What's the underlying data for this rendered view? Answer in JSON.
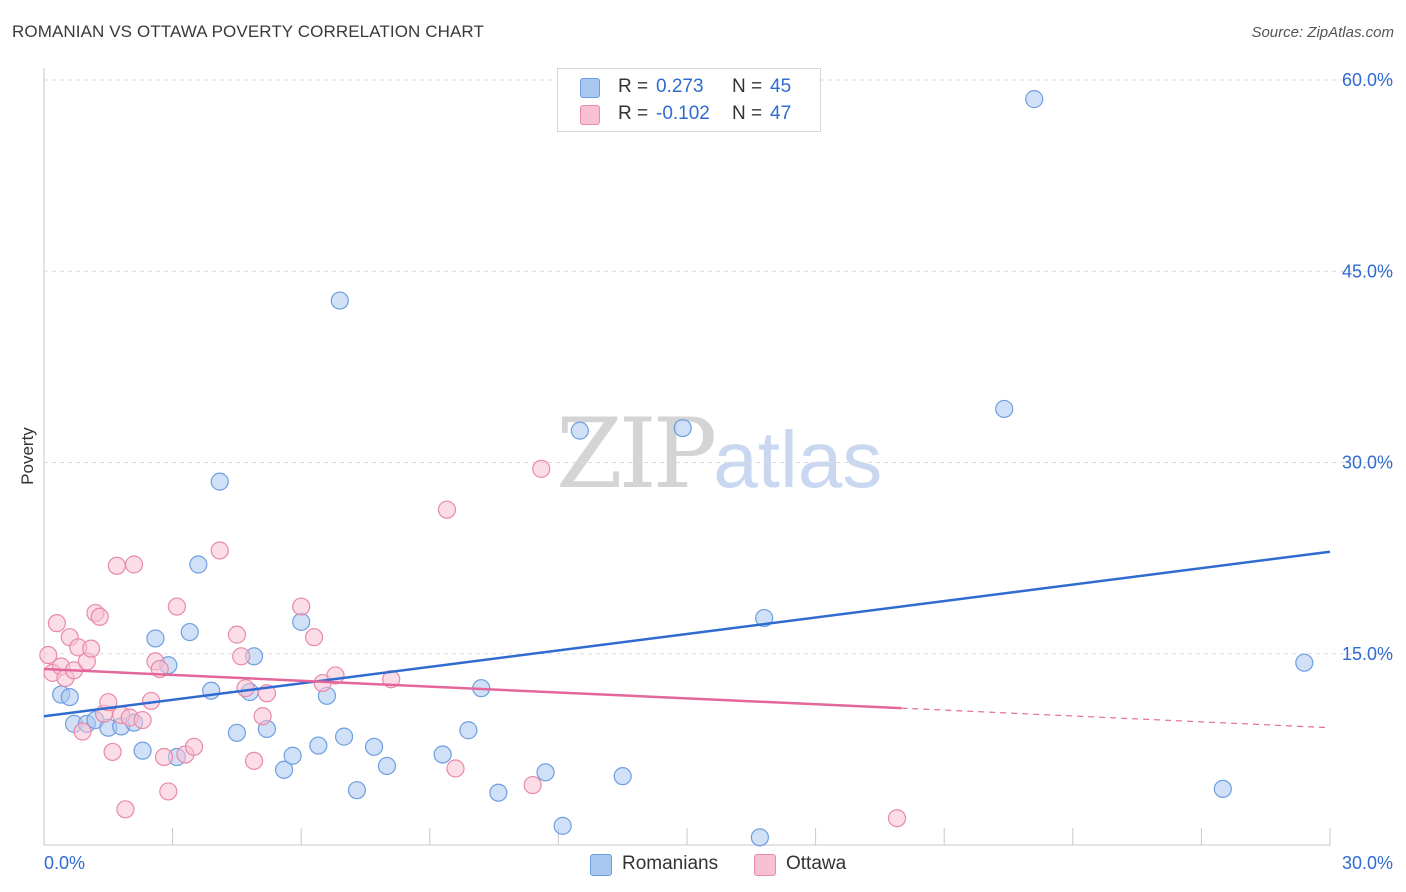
{
  "title": "ROMANIAN VS OTTAWA POVERTY CORRELATION CHART",
  "source": "Source: ZipAtlas.com",
  "watermark": {
    "zip": "ZIP",
    "atlas": "atlas"
  },
  "legend": {
    "rows": [
      {
        "r_label": "R =",
        "r_value": "0.273",
        "n_label": "N =",
        "n_value": "45",
        "color": "#a9c8f1",
        "border": "#6e9ee0"
      },
      {
        "r_label": "R =",
        "r_value": "-0.102",
        "n_label": "N =",
        "n_value": "47",
        "color": "#f7c1d3",
        "border": "#e88aa8"
      }
    ]
  },
  "bottom_legend": [
    {
      "label": "Romanians",
      "color": "#a9c8f1",
      "border": "#6e9ee0"
    },
    {
      "label": "Ottawa",
      "color": "#f7c1d3",
      "border": "#e88aa8"
    }
  ],
  "chart_data": {
    "type": "scatter",
    "title": "ROMANIAN VS OTTAWA POVERTY CORRELATION CHART",
    "xlabel": "",
    "ylabel": "Poverty",
    "xlim": [
      0,
      30
    ],
    "ylim": [
      0,
      60
    ],
    "x_tick_labels": [
      "0.0%",
      "30.0%"
    ],
    "y_ticks": [
      15,
      30,
      45,
      60
    ],
    "y_tick_labels": [
      "15.0%",
      "30.0%",
      "45.0%",
      "60.0%"
    ],
    "grid": true,
    "series": [
      {
        "name": "Romanians",
        "color": "#a9c8f1",
        "stroke": "#6e9ee0",
        "trend_color": "#2f6bd1",
        "trend": {
          "x0": 0,
          "y0": 10.1,
          "x1": 30,
          "y1": 23.0,
          "solid_until": 30
        },
        "points": [
          [
            0.4,
            11.8
          ],
          [
            0.6,
            11.6
          ],
          [
            0.7,
            9.5
          ],
          [
            1.0,
            9.5
          ],
          [
            1.2,
            9.8
          ],
          [
            1.5,
            9.2
          ],
          [
            1.8,
            9.3
          ],
          [
            2.1,
            9.6
          ],
          [
            2.3,
            7.4
          ],
          [
            2.6,
            16.2
          ],
          [
            2.9,
            14.1
          ],
          [
            3.1,
            6.9
          ],
          [
            3.4,
            16.7
          ],
          [
            3.6,
            22.0
          ],
          [
            3.9,
            12.1
          ],
          [
            4.1,
            28.5
          ],
          [
            4.5,
            8.8
          ],
          [
            4.8,
            12.0
          ],
          [
            4.9,
            14.8
          ],
          [
            5.2,
            9.1
          ],
          [
            5.6,
            5.9
          ],
          [
            5.8,
            7.0
          ],
          [
            6.0,
            17.5
          ],
          [
            6.4,
            7.8
          ],
          [
            6.6,
            11.7
          ],
          [
            6.9,
            42.7
          ],
          [
            7.0,
            8.5
          ],
          [
            7.3,
            4.3
          ],
          [
            7.7,
            7.7
          ],
          [
            8.0,
            6.2
          ],
          [
            9.3,
            7.1
          ],
          [
            9.9,
            9.0
          ],
          [
            10.2,
            12.3
          ],
          [
            10.6,
            4.1
          ],
          [
            11.7,
            5.7
          ],
          [
            12.1,
            1.5
          ],
          [
            12.5,
            32.5
          ],
          [
            13.5,
            5.4
          ],
          [
            14.9,
            32.7
          ],
          [
            16.7,
            0.6
          ],
          [
            16.8,
            17.8
          ],
          [
            22.4,
            34.2
          ],
          [
            23.1,
            58.5
          ],
          [
            27.5,
            4.4
          ],
          [
            29.4,
            14.3
          ]
        ]
      },
      {
        "name": "Ottawa",
        "color": "#f7c1d3",
        "stroke": "#e88aa8",
        "trend_color": "#e3679a",
        "trend": {
          "x0": 0,
          "y0": 13.8,
          "x1": 30,
          "y1": 9.2,
          "solid_until": 20.0
        },
        "points": [
          [
            0.1,
            14.9
          ],
          [
            0.2,
            13.5
          ],
          [
            0.3,
            17.4
          ],
          [
            0.4,
            14.0
          ],
          [
            0.5,
            13.1
          ],
          [
            0.6,
            16.3
          ],
          [
            0.7,
            13.7
          ],
          [
            0.8,
            15.5
          ],
          [
            0.9,
            8.9
          ],
          [
            1.0,
            14.4
          ],
          [
            1.1,
            15.4
          ],
          [
            1.2,
            18.2
          ],
          [
            1.3,
            17.9
          ],
          [
            1.4,
            10.3
          ],
          [
            1.5,
            11.2
          ],
          [
            1.6,
            7.3
          ],
          [
            1.7,
            21.9
          ],
          [
            1.8,
            10.2
          ],
          [
            1.9,
            2.8
          ],
          [
            2.0,
            10.0
          ],
          [
            2.1,
            22.0
          ],
          [
            2.3,
            9.8
          ],
          [
            2.5,
            11.3
          ],
          [
            2.6,
            14.4
          ],
          [
            2.7,
            13.8
          ],
          [
            2.8,
            6.9
          ],
          [
            2.9,
            4.2
          ],
          [
            3.1,
            18.7
          ],
          [
            3.3,
            7.1
          ],
          [
            3.5,
            7.7
          ],
          [
            4.1,
            23.1
          ],
          [
            4.5,
            16.5
          ],
          [
            4.6,
            14.8
          ],
          [
            4.7,
            12.3
          ],
          [
            4.9,
            6.6
          ],
          [
            5.1,
            10.1
          ],
          [
            5.2,
            11.9
          ],
          [
            6.0,
            18.7
          ],
          [
            6.3,
            16.3
          ],
          [
            6.5,
            12.7
          ],
          [
            6.8,
            13.3
          ],
          [
            8.1,
            13.0
          ],
          [
            9.4,
            26.3
          ],
          [
            9.6,
            6.0
          ],
          [
            11.4,
            4.7
          ],
          [
            11.6,
            29.5
          ],
          [
            19.9,
            2.1
          ]
        ]
      }
    ]
  }
}
